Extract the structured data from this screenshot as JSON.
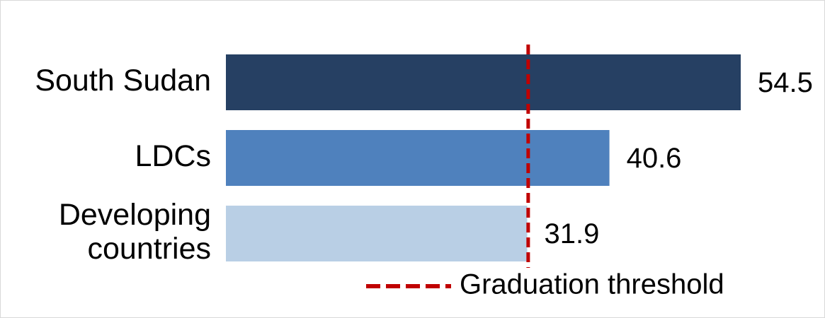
{
  "chart_data": {
    "type": "bar",
    "orientation": "horizontal",
    "categories": [
      [
        "South Sudan"
      ],
      [
        "LDCs"
      ],
      [
        "Developing",
        "countries"
      ]
    ],
    "values": [
      54.5,
      40.6,
      31.9
    ],
    "value_labels": [
      "54.5",
      "40.6",
      "31.9"
    ],
    "colors": [
      "#264063",
      "#4f81bd",
      "#b9cfe5"
    ],
    "threshold": {
      "value": 32,
      "color": "#c00000",
      "style": "dashed",
      "legend_label": "Graduation threshold"
    },
    "xlim": [
      0,
      54.5
    ],
    "grid": false,
    "legend_position": "bottom"
  }
}
